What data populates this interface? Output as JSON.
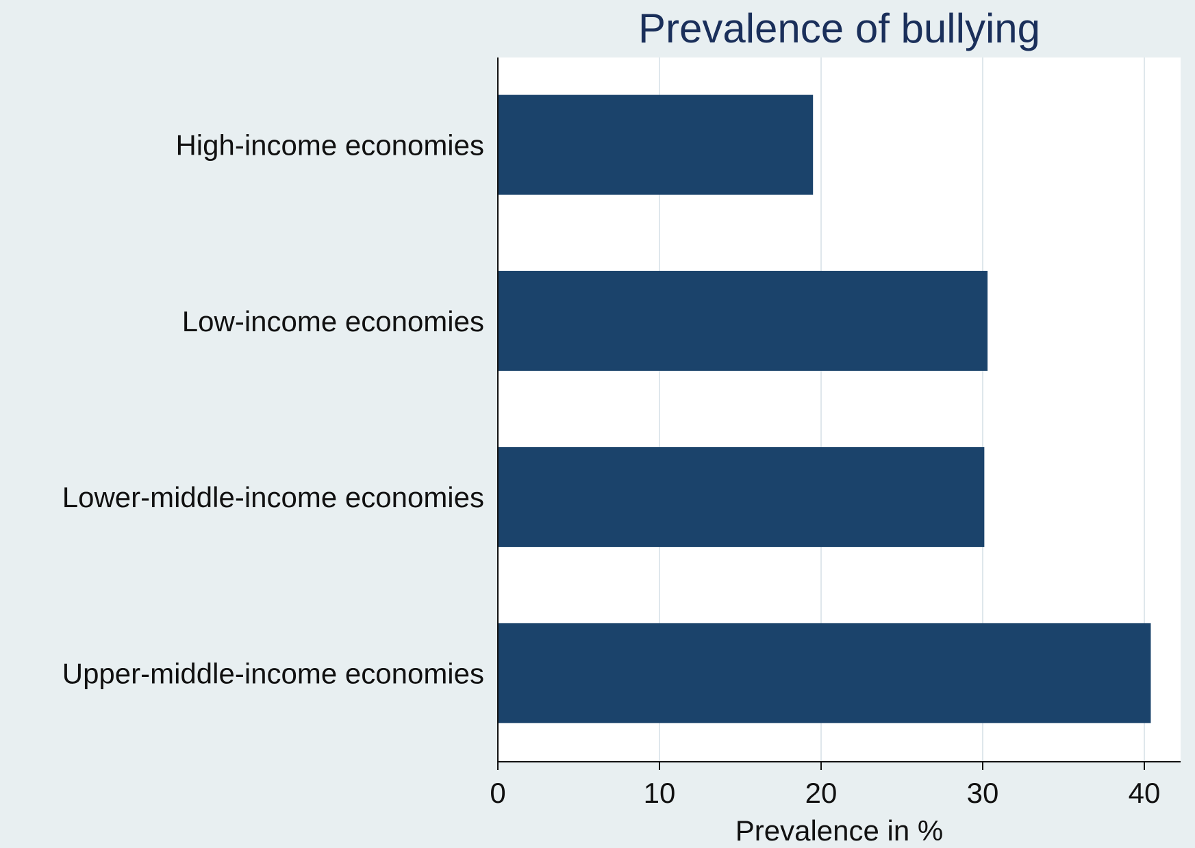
{
  "chart_data": {
    "type": "bar",
    "orientation": "horizontal",
    "title": "Prevalence of bullying",
    "xlabel": "Prevalence in %",
    "ylabel": "",
    "categories": [
      "High-income economies",
      "Low-income economies",
      "Lower-middle-income economies",
      "Upper-middle-income economies"
    ],
    "values": [
      19.5,
      30.3,
      30.1,
      40.4
    ],
    "xlim": [
      0,
      42
    ],
    "xticks": [
      0,
      10,
      20,
      30,
      40
    ],
    "grid": true,
    "legend": "none",
    "colors": {
      "bar": "#1b436b",
      "plot_background": "#ffffff",
      "page_background": "#e8eff1",
      "grid": "#dfe7ec",
      "title": "#1a2f5a",
      "axis": "#111111"
    }
  }
}
